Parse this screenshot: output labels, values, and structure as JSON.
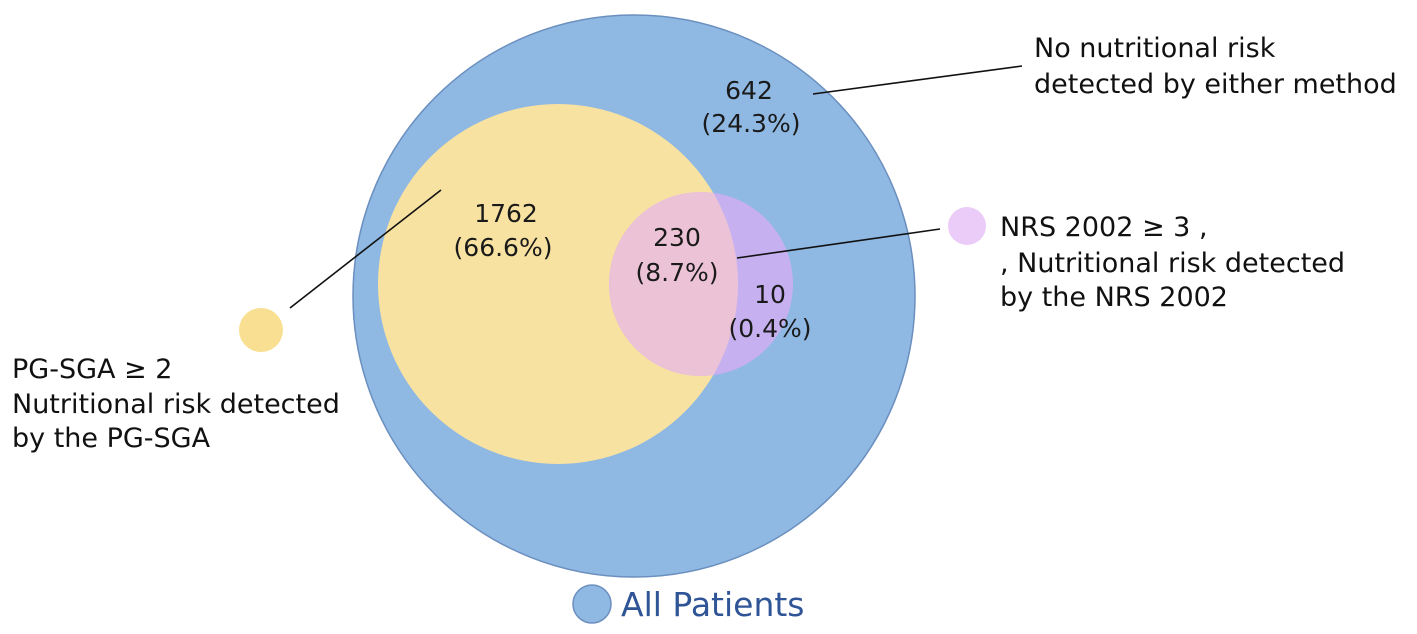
{
  "colors": {
    "all_patients": "#8fb8e3",
    "all_patients_stroke": "#6b8fbf",
    "pg_sga": "#f8e2a1",
    "overlap": "#ecc3d6",
    "nrs": "#c6b0f0",
    "nrs_dot": "#ebcbf7",
    "pg_sga_dot": "#f9df92",
    "legend_text": "#2f5597"
  },
  "regions": {
    "none": {
      "count": "642",
      "percent": "(24.3%)"
    },
    "pg_sga_only": {
      "count": "1762",
      "percent": "(66.6%)"
    },
    "both": {
      "count": "230",
      "percent": "(8.7%)"
    },
    "nrs_only": {
      "count": "10",
      "percent": "(0.4%)"
    }
  },
  "callouts": {
    "none": {
      "line1": "No nutritional risk",
      "line2": "detected by either method"
    },
    "nrs": {
      "line1": "NRS 2002 ≥ 3 ,",
      "line2": ", Nutritional risk detected",
      "line3": "by the NRS 2002"
    },
    "pg_sga": {
      "line1": "PG-SGA ≥ 2",
      "line2": "Nutritional risk detected",
      "line3": "by the PG-SGA"
    }
  },
  "legend": {
    "label": "All Patients"
  }
}
